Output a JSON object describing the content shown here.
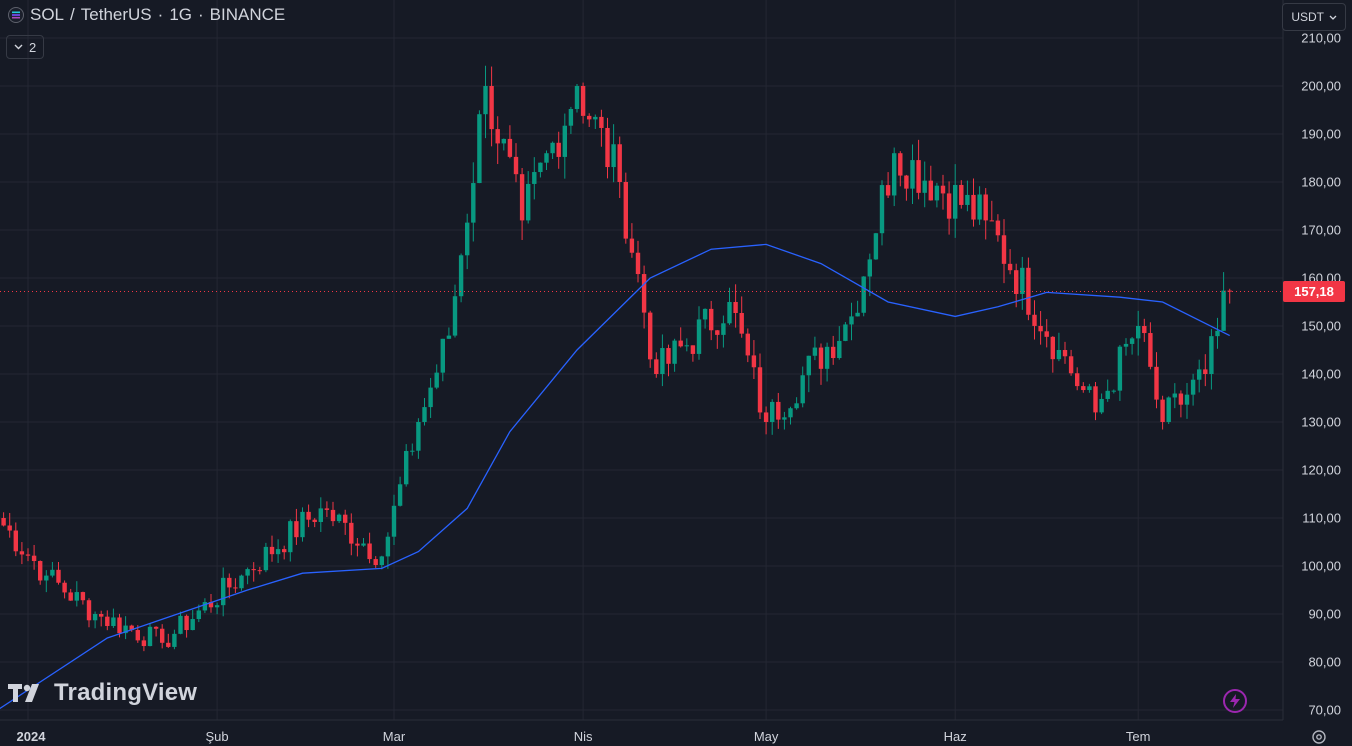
{
  "header": {
    "symbol": "SOL",
    "separator": "/",
    "quote": "TetherUS",
    "interval": "1G",
    "exchange": "BINANCE",
    "dot": "·"
  },
  "series_count": "2",
  "currency_selector": "USDT",
  "watermark": "TradingView",
  "last_price_label": "157,18",
  "colors": {
    "background": "#161a25",
    "up": "#089981",
    "down": "#f23645",
    "ma": "#2962ff",
    "grid": "#242733",
    "text": "#d1d4dc"
  },
  "chart_data": {
    "type": "candlestick",
    "y_axis_labels": [
      "210,00",
      "200,00",
      "190,00",
      "180,00",
      "170,00",
      "160,00",
      "150,00",
      "140,00",
      "130,00",
      "120,00",
      "110,00",
      "100,00",
      "90,00",
      "80,00",
      "70,00"
    ],
    "ylim": [
      70,
      210
    ],
    "x_axis_labels": [
      "2024",
      "Şub",
      "Mar",
      "Nis",
      "May",
      "Haz",
      "Tem"
    ],
    "x_axis_dates": [
      "2024-01-01",
      "2024-02-01",
      "2024-03-01",
      "2024-04-01",
      "2024-05-01",
      "2024-06-01",
      "2024-07-01"
    ],
    "last_price": 157.18,
    "series": [
      {
        "kind": "ohlc",
        "key_closes": [
          {
            "date": "2023-12-27",
            "close": 110
          },
          {
            "date": "2024-01-04",
            "close": 98
          },
          {
            "date": "2024-01-12",
            "close": 90
          },
          {
            "date": "2024-01-23",
            "close": 84
          },
          {
            "date": "2024-02-05",
            "close": 98
          },
          {
            "date": "2024-02-18",
            "close": 112
          },
          {
            "date": "2024-02-28",
            "close": 102
          },
          {
            "date": "2024-03-05",
            "close": 130
          },
          {
            "date": "2024-03-10",
            "close": 148
          },
          {
            "date": "2024-03-16",
            "close": 200
          },
          {
            "date": "2024-03-22",
            "close": 172
          },
          {
            "date": "2024-03-31",
            "close": 200
          },
          {
            "date": "2024-04-07",
            "close": 180
          },
          {
            "date": "2024-04-13",
            "close": 140
          },
          {
            "date": "2024-04-25",
            "close": 155
          },
          {
            "date": "2024-05-01",
            "close": 130
          },
          {
            "date": "2024-05-15",
            "close": 152
          },
          {
            "date": "2024-05-22",
            "close": 186
          },
          {
            "date": "2024-06-06",
            "close": 172
          },
          {
            "date": "2024-06-18",
            "close": 145
          },
          {
            "date": "2024-06-24",
            "close": 132
          },
          {
            "date": "2024-07-01",
            "close": 150
          },
          {
            "date": "2024-07-05",
            "close": 130
          },
          {
            "date": "2024-07-12",
            "close": 140
          },
          {
            "date": "2024-07-16",
            "close": 157.18
          }
        ]
      },
      {
        "kind": "moving_average",
        "points": [
          {
            "date": "2023-12-27",
            "value": 70
          },
          {
            "date": "2024-01-14",
            "value": 85
          },
          {
            "date": "2024-02-06",
            "value": 95
          },
          {
            "date": "2024-02-15",
            "value": 98.5
          },
          {
            "date": "2024-02-28",
            "value": 99.5
          },
          {
            "date": "2024-03-05",
            "value": 103
          },
          {
            "date": "2024-03-13",
            "value": 112
          },
          {
            "date": "2024-03-20",
            "value": 128
          },
          {
            "date": "2024-03-31",
            "value": 145
          },
          {
            "date": "2024-04-12",
            "value": 160
          },
          {
            "date": "2024-04-22",
            "value": 166
          },
          {
            "date": "2024-05-01",
            "value": 167
          },
          {
            "date": "2024-05-10",
            "value": 163
          },
          {
            "date": "2024-05-21",
            "value": 155
          },
          {
            "date": "2024-06-01",
            "value": 152
          },
          {
            "date": "2024-06-08",
            "value": 154
          },
          {
            "date": "2024-06-16",
            "value": 157
          },
          {
            "date": "2024-06-28",
            "value": 156
          },
          {
            "date": "2024-07-05",
            "value": 155
          },
          {
            "date": "2024-07-16",
            "value": 148
          }
        ]
      }
    ]
  }
}
